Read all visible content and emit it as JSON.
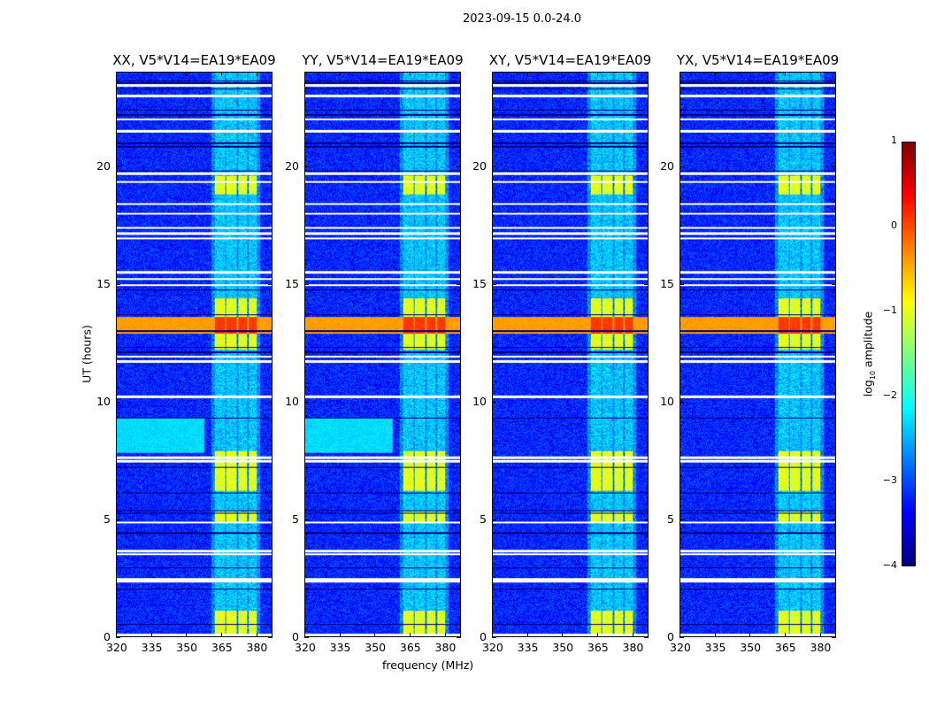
{
  "suptitle": "2023-09-15 0.0-24.0",
  "chart_data": {
    "type": "heatmap",
    "title": "2023-09-15 0.0-24.0",
    "xlabel": "frequency (MHz)",
    "ylabel": "UT (hours)",
    "xlim": [
      320,
      387
    ],
    "ylim": [
      0,
      24
    ],
    "xticks": [
      320,
      335,
      350,
      365,
      380
    ],
    "yticks": [
      0,
      5,
      10,
      15,
      20
    ],
    "panels": [
      {
        "title": "XX, V5*V14=EA19*EA09",
        "cyan_band": true
      },
      {
        "title": "YY, V5*V14=EA19*EA09",
        "cyan_band": true
      },
      {
        "title": "XY, V5*V14=EA19*EA09",
        "cyan_band": false
      },
      {
        "title": "YX, V5*V14=EA19*EA09",
        "cyan_band": false
      }
    ],
    "background_log10_amplitude": -3.2,
    "rfi_channels_mhz": [
      [
        362.5,
        367
      ],
      [
        367.5,
        372
      ],
      [
        372.5,
        376.5
      ],
      [
        377,
        380.5
      ]
    ],
    "rfi_active_hours": [
      [
        0,
        1.1
      ],
      [
        4.9,
        5.3
      ],
      [
        6.2,
        7.9
      ],
      [
        12.2,
        14.4
      ],
      [
        18.8,
        19.6
      ]
    ],
    "strong_band_hours": [
      12.9,
      13.6
    ],
    "strong_band_log10_amplitude": -0.4,
    "cyan_band_hours": [
      7.8,
      9.3
    ],
    "flagged_hours": [
      0.05,
      2.35,
      2.45,
      3.5,
      3.62,
      4.85,
      7.45,
      7.6,
      10.2,
      11.7,
      11.9,
      14.95,
      15.2,
      15.5,
      16.95,
      17.15,
      17.4,
      18.0,
      18.4,
      19.35,
      19.7,
      21.5,
      22.0,
      23.0,
      23.45
    ],
    "gap_hours": [
      0.5,
      2.0,
      2.9,
      4.4,
      5.25,
      5.35,
      6.1,
      7.2,
      9.3,
      12.1,
      12.3,
      13.0,
      13.7,
      14.75,
      19.8,
      20.85,
      21.0,
      22.2,
      22.4,
      23.3,
      23.55,
      23.65
    ],
    "colorbar": {
      "label_main": "log",
      "label_sub": "10",
      "label_tail": " amplitude",
      "range": [
        -4,
        1
      ],
      "ticks": [
        "1",
        "0",
        "−1",
        "−2",
        "−3",
        "−4"
      ],
      "colormap": "jet"
    }
  }
}
